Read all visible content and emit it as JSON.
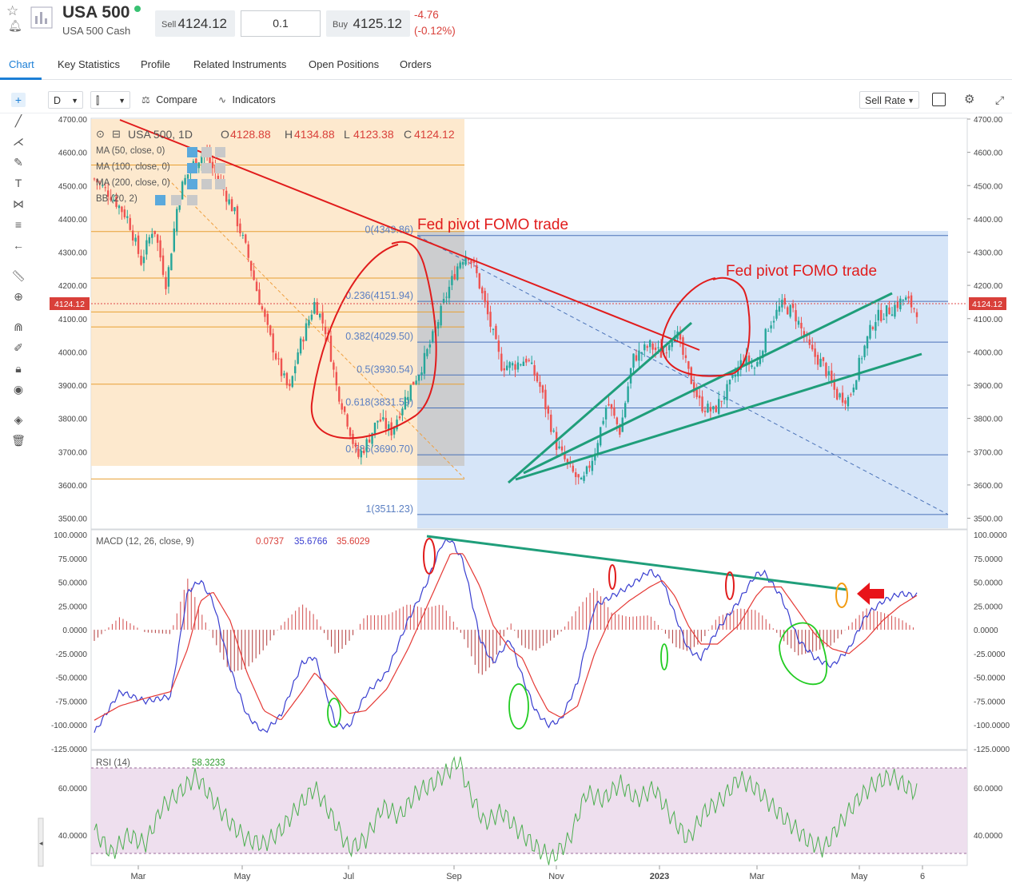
{
  "header": {
    "instrument": "USA 500",
    "instrument_sub": "USA 500 Cash",
    "sell_label": "Sell",
    "sell_price": "4124.12",
    "quantity": "0.1",
    "buy_label": "Buy",
    "buy_price": "4125.12",
    "change": "-4.76",
    "change_pct": "(-0.12%)"
  },
  "tabs": [
    {
      "label": "Chart",
      "active": true
    },
    {
      "label": "Key Statistics"
    },
    {
      "label": "Profile"
    },
    {
      "label": "Related Instruments"
    },
    {
      "label": "Open Positions"
    },
    {
      "label": "Orders"
    }
  ],
  "toolbar": {
    "interval": "D",
    "compare_label": "Compare",
    "indicators_label": "Indicators",
    "rate_mode": "Sell Rate"
  },
  "icons": {
    "left_tools": [
      "crosshair-icon",
      "trend-line-icon",
      "pitchfork-icon",
      "brush-icon",
      "text-icon",
      "pattern-icon",
      "fib-icon",
      "arrow-left-icon",
      "ruler-icon",
      "zoom-icon",
      "magnet-icon",
      "pencil-lock-icon",
      "lock-icon",
      "eye-icon",
      "layers-icon",
      "trash-icon"
    ]
  },
  "colors": {
    "up": "#26a69a",
    "down": "#ef5350",
    "negative": "#d9403a",
    "accent": "#1c7fd6",
    "annotation": "#e11c1c",
    "trendline_green": "#1f9e7a",
    "macd_line": "#3a3fd0",
    "signal_line": "#e53935",
    "rsi_line": "#4caf50"
  },
  "chart_data": [
    {
      "type": "candlestick",
      "legend": {
        "symbol": "USA 500, 1D",
        "open_label": "O",
        "open": "4128.88",
        "high_label": "H",
        "high": "4134.88",
        "low_label": "L",
        "low": "4123.38",
        "close_label": "C",
        "close": "4124.12",
        "indicators": [
          "MA (50, close, 0)",
          "MA (100, close, 0)",
          "MA (200, close, 0)",
          "BB (20, 2)"
        ]
      },
      "ylim": [
        3470,
        4700
      ],
      "y_ticks": [
        "3500.00",
        "3600.00",
        "3700.00",
        "3800.00",
        "3900.00",
        "4000.00",
        "4100.00",
        "4200.00",
        "4300.00",
        "4400.00",
        "4500.00",
        "4600.00",
        "4700.00"
      ],
      "x_ticks": [
        "Mar",
        "May",
        "Jul",
        "Sep",
        "Nov",
        "2023",
        "Mar",
        "May",
        "6"
      ],
      "last_price": "4124.12",
      "series_close_path": [
        [
          0,
          4520
        ],
        [
          0.02,
          4470
        ],
        [
          0.04,
          4400
        ],
        [
          0.055,
          4270
        ],
        [
          0.07,
          4380
        ],
        [
          0.085,
          4200
        ],
        [
          0.1,
          4480
        ],
        [
          0.115,
          4560
        ],
        [
          0.13,
          4600
        ],
        [
          0.15,
          4500
        ],
        [
          0.165,
          4420
        ],
        [
          0.18,
          4300
        ],
        [
          0.19,
          4200
        ],
        [
          0.205,
          4060
        ],
        [
          0.22,
          3940
        ],
        [
          0.23,
          3880
        ],
        [
          0.24,
          4000
        ],
        [
          0.26,
          4150
        ],
        [
          0.275,
          4050
        ],
        [
          0.285,
          3900
        ],
        [
          0.3,
          3780
        ],
        [
          0.31,
          3680
        ],
        [
          0.32,
          3720
        ],
        [
          0.335,
          3800
        ],
        [
          0.35,
          3760
        ],
        [
          0.37,
          3880
        ],
        [
          0.385,
          3950
        ],
        [
          0.4,
          4050
        ],
        [
          0.415,
          4170
        ],
        [
          0.43,
          4270
        ],
        [
          0.44,
          4300
        ],
        [
          0.45,
          4240
        ],
        [
          0.465,
          4100
        ],
        [
          0.48,
          3960
        ],
        [
          0.495,
          3960
        ],
        [
          0.51,
          3980
        ],
        [
          0.525,
          3900
        ],
        [
          0.545,
          3720
        ],
        [
          0.56,
          3650
        ],
        [
          0.575,
          3600
        ],
        [
          0.59,
          3700
        ],
        [
          0.605,
          3850
        ],
        [
          0.62,
          3760
        ],
        [
          0.635,
          3980
        ],
        [
          0.655,
          4020
        ],
        [
          0.67,
          3990
        ],
        [
          0.685,
          4070
        ],
        [
          0.7,
          3940
        ],
        [
          0.715,
          3840
        ],
        [
          0.73,
          3820
        ],
        [
          0.75,
          3900
        ],
        [
          0.765,
          3980
        ],
        [
          0.78,
          3950
        ],
        [
          0.795,
          4080
        ],
        [
          0.81,
          4140
        ],
        [
          0.825,
          4120
        ],
        [
          0.845,
          4000
        ],
        [
          0.86,
          3960
        ],
        [
          0.875,
          3870
        ],
        [
          0.89,
          3860
        ],
        [
          0.905,
          3990
        ],
        [
          0.92,
          4100
        ],
        [
          0.94,
          4130
        ],
        [
          0.955,
          4160
        ],
        [
          0.97,
          4124.12
        ]
      ],
      "fib_levels": [
        {
          "label": "0(4349.86)",
          "value": 4349.86
        },
        {
          "label": "0.236(4151.94)",
          "value": 4151.94
        },
        {
          "label": "0.382(4029.50)",
          "value": 4029.5
        },
        {
          "label": "0.5(3930.54)",
          "value": 3930.54
        },
        {
          "label": "0.618(3831.59)",
          "value": 3831.59
        },
        {
          "label": "0.786(3690.70)",
          "value": 3690.7
        },
        {
          "label": "1(3511.23)",
          "value": 3511.23
        }
      ],
      "annotations": [
        "Fed pivot FOMO trade",
        "Fed pivot FOMO trade"
      ]
    },
    {
      "type": "line",
      "name": "MACD (12, 26, close, 9)",
      "values_legend": [
        "0.0737",
        "35.6766",
        "35.6029"
      ],
      "ylim": [
        -125,
        100
      ],
      "y_ticks": [
        "100.0000",
        "75.0000",
        "50.0000",
        "25.0000",
        "0.0000",
        "-25.0000",
        "-50.0000",
        "-75.0000",
        "-100.0000",
        "-125.0000"
      ],
      "macd_path": [
        [
          0,
          -108
        ],
        [
          0.03,
          -65
        ],
        [
          0.06,
          -75
        ],
        [
          0.09,
          -70
        ],
        [
          0.11,
          40
        ],
        [
          0.125,
          52
        ],
        [
          0.14,
          30
        ],
        [
          0.16,
          -40
        ],
        [
          0.18,
          -90
        ],
        [
          0.2,
          -108
        ],
        [
          0.22,
          -90
        ],
        [
          0.245,
          -35
        ],
        [
          0.26,
          -28
        ],
        [
          0.285,
          -100
        ],
        [
          0.3,
          -102
        ],
        [
          0.32,
          -68
        ],
        [
          0.345,
          -45
        ],
        [
          0.37,
          10
        ],
        [
          0.39,
          45
        ],
        [
          0.41,
          90
        ],
        [
          0.42,
          95
        ],
        [
          0.435,
          72
        ],
        [
          0.455,
          -10
        ],
        [
          0.47,
          -35
        ],
        [
          0.49,
          -10
        ],
        [
          0.505,
          -50
        ],
        [
          0.52,
          -85
        ],
        [
          0.535,
          -100
        ],
        [
          0.55,
          -95
        ],
        [
          0.57,
          -55
        ],
        [
          0.59,
          25
        ],
        [
          0.61,
          35
        ],
        [
          0.63,
          45
        ],
        [
          0.655,
          62
        ],
        [
          0.67,
          52
        ],
        [
          0.685,
          15
        ],
        [
          0.7,
          -20
        ],
        [
          0.715,
          -30
        ],
        [
          0.735,
          0
        ],
        [
          0.76,
          30
        ],
        [
          0.78,
          58
        ],
        [
          0.79,
          60
        ],
        [
          0.81,
          35
        ],
        [
          0.83,
          -10
        ],
        [
          0.85,
          -30
        ],
        [
          0.87,
          -38
        ],
        [
          0.89,
          -20
        ],
        [
          0.91,
          15
        ],
        [
          0.93,
          30
        ],
        [
          0.95,
          38
        ],
        [
          0.97,
          36
        ]
      ],
      "signal_path": [
        [
          0,
          -95
        ],
        [
          0.03,
          -80
        ],
        [
          0.06,
          -72
        ],
        [
          0.09,
          -65
        ],
        [
          0.11,
          -20
        ],
        [
          0.125,
          30
        ],
        [
          0.14,
          40
        ],
        [
          0.16,
          10
        ],
        [
          0.18,
          -45
        ],
        [
          0.2,
          -85
        ],
        [
          0.22,
          -95
        ],
        [
          0.245,
          -65
        ],
        [
          0.26,
          -45
        ],
        [
          0.285,
          -70
        ],
        [
          0.3,
          -88
        ],
        [
          0.32,
          -85
        ],
        [
          0.345,
          -62
        ],
        [
          0.37,
          -20
        ],
        [
          0.39,
          20
        ],
        [
          0.41,
          60
        ],
        [
          0.42,
          80
        ],
        [
          0.435,
          80
        ],
        [
          0.455,
          45
        ],
        [
          0.47,
          5
        ],
        [
          0.49,
          -20
        ],
        [
          0.505,
          -30
        ],
        [
          0.52,
          -60
        ],
        [
          0.535,
          -85
        ],
        [
          0.55,
          -92
        ],
        [
          0.57,
          -80
        ],
        [
          0.59,
          -25
        ],
        [
          0.61,
          15
        ],
        [
          0.63,
          30
        ],
        [
          0.655,
          45
        ],
        [
          0.67,
          52
        ],
        [
          0.685,
          35
        ],
        [
          0.7,
          5
        ],
        [
          0.715,
          -15
        ],
        [
          0.735,
          -15
        ],
        [
          0.76,
          5
        ],
        [
          0.78,
          35
        ],
        [
          0.79,
          45
        ],
        [
          0.81,
          45
        ],
        [
          0.83,
          20
        ],
        [
          0.85,
          -5
        ],
        [
          0.87,
          -20
        ],
        [
          0.89,
          -25
        ],
        [
          0.91,
          -10
        ],
        [
          0.93,
          10
        ],
        [
          0.95,
          25
        ],
        [
          0.97,
          36
        ]
      ]
    },
    {
      "type": "line",
      "name": "RSI (14)",
      "value_legend": "58.3233",
      "ylim": [
        28,
        74
      ],
      "y_ticks": [
        "60.0000",
        "40.0000"
      ],
      "band": [
        30,
        70
      ],
      "rsi_path": [
        [
          0,
          42
        ],
        [
          0.02,
          32
        ],
        [
          0.04,
          40
        ],
        [
          0.06,
          36
        ],
        [
          0.08,
          52
        ],
        [
          0.1,
          58
        ],
        [
          0.12,
          65
        ],
        [
          0.14,
          55
        ],
        [
          0.16,
          45
        ],
        [
          0.18,
          38
        ],
        [
          0.2,
          36
        ],
        [
          0.22,
          42
        ],
        [
          0.24,
          52
        ],
        [
          0.26,
          60
        ],
        [
          0.28,
          48
        ],
        [
          0.3,
          34
        ],
        [
          0.32,
          38
        ],
        [
          0.34,
          52
        ],
        [
          0.36,
          48
        ],
        [
          0.38,
          58
        ],
        [
          0.4,
          62
        ],
        [
          0.42,
          68
        ],
        [
          0.43,
          72
        ],
        [
          0.44,
          60
        ],
        [
          0.46,
          45
        ],
        [
          0.48,
          50
        ],
        [
          0.5,
          42
        ],
        [
          0.52,
          35
        ],
        [
          0.54,
          30
        ],
        [
          0.56,
          38
        ],
        [
          0.58,
          58
        ],
        [
          0.6,
          55
        ],
        [
          0.62,
          62
        ],
        [
          0.64,
          55
        ],
        [
          0.66,
          60
        ],
        [
          0.68,
          48
        ],
        [
          0.7,
          38
        ],
        [
          0.72,
          50
        ],
        [
          0.74,
          55
        ],
        [
          0.76,
          64
        ],
        [
          0.78,
          60
        ],
        [
          0.8,
          52
        ],
        [
          0.82,
          45
        ],
        [
          0.84,
          38
        ],
        [
          0.86,
          34
        ],
        [
          0.88,
          45
        ],
        [
          0.9,
          55
        ],
        [
          0.92,
          62
        ],
        [
          0.94,
          65
        ],
        [
          0.96,
          60
        ],
        [
          0.97,
          58
        ]
      ]
    }
  ]
}
